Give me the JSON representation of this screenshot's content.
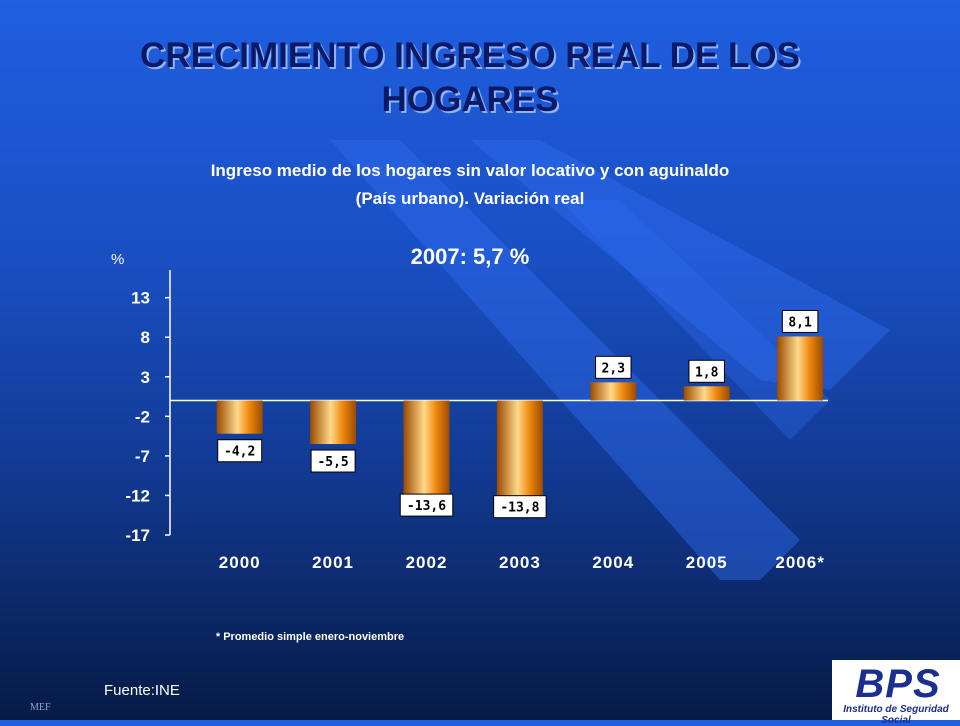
{
  "title": "CRECIMIENTO INGRESO REAL DE LOS HOGARES",
  "subtitle_line1": "Ingreso medio de los hogares sin valor locativo y con aguinaldo",
  "subtitle_line2": "(País urbano). Variación real",
  "highlight": "2007: 5,7 %",
  "unit_label": "%",
  "footnote": "* Promedio simple enero-noviembre",
  "source": "Fuente:INE",
  "corner_mark": "MEF",
  "logo": {
    "letters": "BPS",
    "caption": "Instituto de Seguridad Social"
  },
  "colors": {
    "bar_fill": "#f08a10",
    "bar_highlight": "#ffd98a",
    "bar_shadow": "#9a4a00",
    "label_box": "#ffffff",
    "axis": "#ffffff",
    "title": "#0a1a66"
  },
  "chart_data": {
    "type": "bar",
    "categories": [
      "2000",
      "2001",
      "2002",
      "2003",
      "2004",
      "2005",
      "2006*"
    ],
    "values": [
      -4.2,
      -5.5,
      -13.6,
      -13.8,
      2.3,
      1.8,
      8.1
    ],
    "data_labels": [
      "-4,2",
      "-5,5",
      "-13,6",
      "-13,8",
      "2,3",
      "1,8",
      "8,1"
    ],
    "ylabel": "%",
    "yticks": [
      13,
      8,
      3,
      -2,
      -7,
      -12,
      -17
    ],
    "ylim": [
      -17,
      16.5
    ],
    "grid": false,
    "legend": "none"
  }
}
